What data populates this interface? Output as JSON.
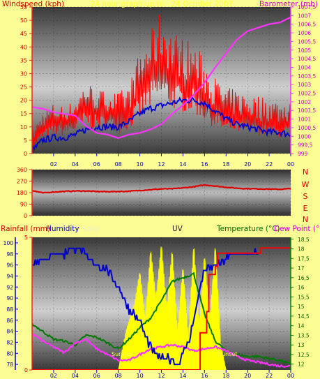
{
  "colors": {
    "background": "#fcfc94",
    "windspeed": "#ff0000",
    "windspeed_avg": "#0000cc",
    "barometer": "#ff33ff",
    "wind_direction": "#dd0000",
    "humidity": "#0000cc",
    "solar": "#ffff00",
    "rainfall": "#ff0000",
    "temperature": "#007700",
    "dew_point": "#ff33ff",
    "uv": "#ffff00"
  },
  "top_panel": {
    "left_title": "Windspeed (kph)",
    "center_title": "24 hour graph up to - 24 October 2007",
    "right_title": "Barometer (mb)"
  },
  "middle_panel": {
    "compass": [
      "N",
      "W",
      "S",
      "E",
      "N"
    ]
  },
  "bottom_panel": {
    "rainfall_label": "Rainfall (mm)",
    "humidity_label": "Humidity",
    "solar_label": "Solar",
    "uv_label": "UV",
    "temperature_label": "Temperature (°C)",
    "dewpoint_label": "Dew Point (°C)",
    "sunrise_label": "Sunrise",
    "sunset_label": "Sunset"
  },
  "chart_data": [
    {
      "type": "line",
      "title": "24 hour graph up to - 24 October 2007",
      "x_ticks": [
        "02",
        "04",
        "06",
        "08",
        "10",
        "12",
        "14",
        "16",
        "18",
        "20",
        "22",
        "00"
      ],
      "xlim_hours": [
        0,
        24
      ],
      "y_left": {
        "label": "Windspeed (kph)",
        "lim": [
          0,
          55
        ],
        "ticks": [
          0,
          5,
          10,
          15,
          20,
          25,
          30,
          35,
          40,
          45,
          50,
          55
        ]
      },
      "y_right": {
        "label": "Barometer (mb)",
        "lim": [
          999,
          1007.5
        ],
        "ticks": [
          "999",
          "999,5",
          "1000",
          "1000,5",
          "1001",
          "1001,5",
          "1002",
          "1002,5",
          "1003",
          "1003,5",
          "1004",
          "1004,5",
          "1005",
          "1005,5",
          "1006",
          "1006,5",
          "1007",
          "1007,5"
        ]
      },
      "series": [
        {
          "name": "Windspeed (kph)",
          "axis": "left",
          "x": [
            0,
            1,
            2,
            3,
            4,
            5,
            6,
            7,
            8,
            9,
            10,
            11,
            12,
            13,
            14,
            15,
            16,
            17,
            18,
            19,
            20,
            21,
            22,
            23,
            24
          ],
          "y": [
            4,
            10,
            12,
            12,
            14,
            18,
            16,
            16,
            14,
            16,
            24,
            30,
            34,
            30,
            28,
            27,
            22,
            17,
            14,
            14,
            13,
            12,
            12,
            11,
            12
          ]
        },
        {
          "name": "Wind gust (kph)",
          "axis": "left",
          "x": [
            0,
            1,
            2,
            3,
            4,
            5,
            6,
            7,
            8,
            9,
            10,
            11,
            12,
            13,
            14,
            15,
            16,
            17,
            18,
            19,
            20,
            21,
            22,
            23,
            24
          ],
          "y": [
            9,
            16,
            19,
            18,
            20,
            28,
            24,
            24,
            23,
            26,
            39,
            46,
            55,
            47,
            44,
            42,
            36,
            29,
            25,
            24,
            23,
            22,
            22,
            20,
            22
          ]
        },
        {
          "name": "Average windspeed (kph)",
          "axis": "left",
          "x": [
            0,
            1,
            2,
            3,
            4,
            5,
            6,
            7,
            8,
            9,
            10,
            11,
            12,
            13,
            14,
            15,
            16,
            17,
            18,
            19,
            20,
            21,
            22,
            23,
            24
          ],
          "y": [
            1,
            5,
            6,
            6,
            7,
            9,
            10,
            10,
            10,
            12,
            15,
            17,
            18,
            19,
            20,
            20,
            19,
            16,
            13,
            11,
            10,
            9,
            8,
            8,
            7
          ]
        },
        {
          "name": "Barometer (mb)",
          "axis": "right",
          "x": [
            0,
            1,
            2,
            3,
            4,
            5,
            6,
            7,
            8,
            9,
            10,
            11,
            12,
            13,
            14,
            15,
            16,
            17,
            18,
            19,
            20,
            21,
            22,
            23,
            24
          ],
          "y": [
            1001.7,
            1001.6,
            1001.4,
            1001.3,
            1001.2,
            1000.6,
            1000.2,
            1000.1,
            999.9,
            1000.1,
            1000.2,
            1000.4,
            1000.7,
            1001.3,
            1001.8,
            1002.4,
            1003.1,
            1004.0,
            1004.8,
            1005.6,
            1006.1,
            1006.3,
            1006.5,
            1006.6,
            1006.9
          ]
        }
      ]
    },
    {
      "type": "line",
      "xlim_hours": [
        0,
        24
      ],
      "y_left": {
        "lim": [
          0,
          360
        ],
        "ticks": [
          0,
          90,
          180,
          270,
          360
        ]
      },
      "series": [
        {
          "name": "Wind direction",
          "x": [
            0,
            1,
            2,
            3,
            4,
            5,
            6,
            7,
            8,
            9,
            10,
            11,
            12,
            13,
            14,
            15,
            16,
            17,
            18,
            19,
            20,
            21,
            22,
            23,
            24
          ],
          "y": [
            196,
            178,
            185,
            190,
            193,
            193,
            189,
            188,
            189,
            191,
            197,
            203,
            209,
            210,
            217,
            226,
            240,
            232,
            222,
            215,
            211,
            210,
            208,
            206,
            212
          ]
        }
      ]
    },
    {
      "type": "line",
      "xlim_hours": [
        0,
        24
      ],
      "y_left": {
        "label": "Humidity",
        "lim": [
          77,
          101
        ],
        "ticks": [
          78,
          80,
          82,
          84,
          86,
          88,
          90,
          92,
          94,
          96,
          98,
          100
        ]
      },
      "y_rain": {
        "label": "Rainfall (mm)",
        "lim": [
          0,
          5
        ],
        "ticks": [
          0,
          5
        ]
      },
      "y_right": {
        "label": "Temperature (°C)",
        "lim": [
          11.7,
          18.6
        ],
        "ticks": [
          "12",
          "12,5",
          "13",
          "13,5",
          "14",
          "14,5",
          "15",
          "15,5",
          "16",
          "16,5",
          "17",
          "17,5",
          "18",
          "18,5"
        ]
      },
      "series": [
        {
          "name": "Humidity",
          "axis": "left",
          "x": [
            0,
            0.5,
            1.5,
            2,
            3,
            3.5,
            4.5,
            5.2,
            6,
            7,
            8,
            9,
            10,
            10.5,
            11,
            12,
            13,
            13.5,
            14,
            14.5,
            15,
            15.5,
            16,
            17,
            18,
            19,
            20,
            21
          ],
          "y": [
            96,
            97,
            97,
            98,
            98,
            99,
            99,
            97,
            96,
            95,
            92,
            88,
            86,
            83,
            81,
            79,
            79,
            78,
            80,
            82,
            86,
            91,
            95,
            96,
            97,
            98,
            98,
            98
          ]
        },
        {
          "name": "Solar",
          "axis": "left",
          "x": [
            8,
            8.7,
            9.5,
            10,
            10.5,
            11,
            11.5,
            12,
            12.5,
            13,
            13.5,
            14,
            14.5,
            15,
            15.5,
            16,
            16.5,
            17,
            17.5,
            18
          ],
          "y": [
            77,
            84,
            89,
            95,
            86,
            99,
            90,
            100,
            88,
            99,
            84,
            96,
            83,
            100,
            85,
            98,
            86,
            100,
            82,
            77
          ]
        },
        {
          "name": "Rainfall (mm)",
          "axis": "rain",
          "x": [
            0,
            15.5,
            15.6,
            16.2,
            16.4,
            17,
            17.2,
            21,
            21.2,
            24
          ],
          "y": [
            0,
            0,
            1.4,
            2.2,
            3.6,
            3.9,
            4.4,
            4.4,
            4.6,
            4.6
          ]
        },
        {
          "name": "Temperature (°C)",
          "axis": "right",
          "x": [
            0,
            1,
            2,
            3,
            4,
            5,
            6,
            7,
            8,
            9,
            10,
            11,
            12,
            13,
            14,
            15,
            16,
            17,
            18,
            19,
            20,
            21,
            22,
            23,
            24
          ],
          "y": [
            14.1,
            13.7,
            13.3,
            13.2,
            13.0,
            13.5,
            13.4,
            13.1,
            12.8,
            13.3,
            13.9,
            14.4,
            15.3,
            16.3,
            16.5,
            16.7,
            14.6,
            13.2,
            12.7,
            12.5,
            12.4,
            12.4,
            12.3,
            12.2,
            12.0
          ]
        },
        {
          "name": "Dew Point (°C)",
          "axis": "right",
          "x": [
            0,
            1,
            2,
            3,
            4,
            5,
            6,
            7,
            8,
            9,
            10,
            11,
            12,
            13,
            14,
            15,
            16,
            17,
            18,
            19,
            20,
            21,
            22,
            23,
            24
          ],
          "y": [
            13.6,
            13.2,
            12.9,
            12.6,
            13.1,
            13.3,
            12.8,
            12.5,
            12.2,
            12.2,
            12.5,
            12.8,
            12.9,
            13.0,
            12.9,
            12.7,
            12.8,
            12.9,
            12.7,
            12.4,
            12.2,
            12.1,
            12.0,
            11.9,
            11.9
          ]
        }
      ]
    }
  ]
}
